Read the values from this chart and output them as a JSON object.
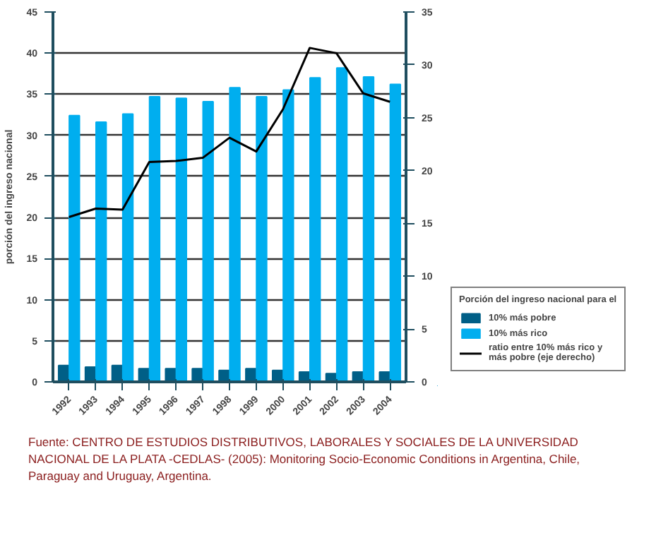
{
  "chart_data": {
    "type": "bar",
    "ylabel": "porción del ingreso nacional",
    "legend_title": "Porción del ingreso nacional para el",
    "categories": [
      "1992",
      "1993",
      "1994",
      "1995",
      "1996",
      "1997",
      "1998",
      "1999",
      "2000",
      "2001",
      "2002",
      "2003",
      "2004"
    ],
    "series": [
      {
        "name": "10% más pobre",
        "color": "#005f87",
        "values": [
          2.0,
          1.8,
          2.0,
          1.6,
          1.6,
          1.6,
          1.4,
          1.6,
          1.4,
          1.2,
          1.0,
          1.2,
          1.2
        ]
      },
      {
        "name": "10% más rico",
        "color": "#00aeef",
        "values": [
          32.4,
          31.6,
          32.6,
          34.7,
          34.5,
          34.1,
          35.8,
          34.7,
          35.5,
          37.0,
          38.2,
          37.1,
          36.2
        ]
      },
      {
        "name": "ratio entre 10% más rico y más pobre (eje derecho)",
        "type": "line",
        "axis": "y2",
        "color": "#000000",
        "values": [
          15.6,
          16.4,
          16.3,
          20.8,
          20.9,
          21.2,
          23.1,
          21.8,
          25.8,
          31.6,
          31.1,
          27.3,
          26.5
        ]
      }
    ],
    "ylim": [
      0,
      45
    ],
    "yticks": [
      0,
      5,
      10,
      15,
      20,
      25,
      30,
      35,
      40,
      45
    ],
    "y2lim": [
      0,
      35
    ],
    "y2ticks": [
      0,
      5,
      10,
      15,
      20,
      25,
      30,
      35
    ],
    "grid": "y",
    "legend": "right",
    "annotations": [
      "Fuente: CENTRO DE ESTUDIOS DISTRIBUTIVOS, LABORALES Y SOCIALES DE LA UNIVERSIDAD NACIONAL DE LA PLATA -CEDLAS- (2005): Monitoring Socio-Economic Conditions in Argentina, Chile, Paraguay and Uruguay, Argentina."
    ]
  }
}
